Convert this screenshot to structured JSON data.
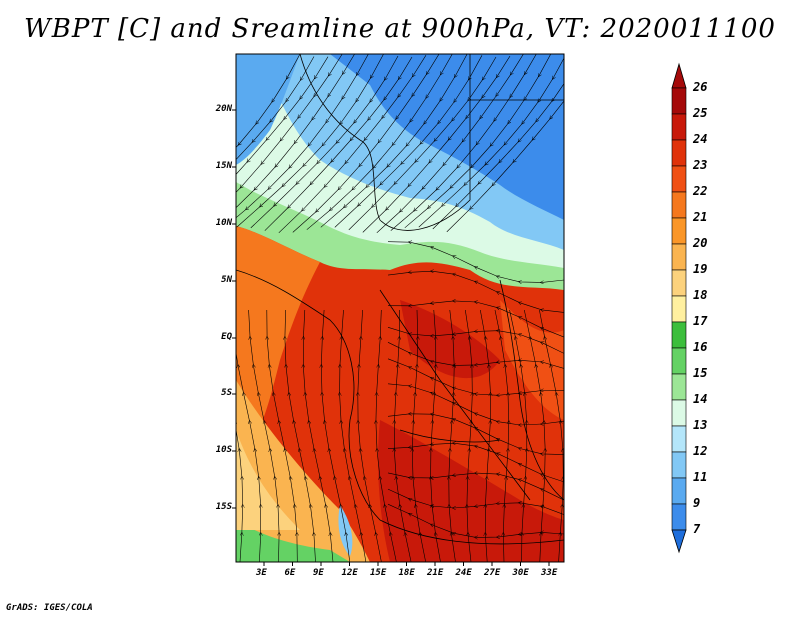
{
  "title": "WBPT [C] and Sreamline at 900hPa, VT: 2020011100",
  "footer": "GrADS: IGES/COLA",
  "map": {
    "lat_labels": [
      "20N",
      "15N",
      "10N",
      "5N",
      "EQ",
      "5S",
      "10S",
      "15S"
    ],
    "lon_labels": [
      "3E",
      "6E",
      "9E",
      "12E",
      "15E",
      "18E",
      "21E",
      "24E",
      "27E",
      "30E",
      "33E"
    ],
    "field": "WBPT",
    "level": "900hPa",
    "overlay": "streamlines"
  },
  "colorbar": {
    "labels": [
      "26",
      "25",
      "24",
      "23",
      "22",
      "21",
      "20",
      "19",
      "18",
      "17",
      "16",
      "15",
      "14",
      "13",
      "12",
      "11",
      "9",
      "7"
    ],
    "colors": [
      "#a50a0a",
      "#c8190a",
      "#e0320a",
      "#f05014",
      "#f5781e",
      "#fa9628",
      "#fab450",
      "#fcd27d",
      "#fff0a0",
      "#3cbe3c",
      "#64d264",
      "#9ce696",
      "#dcfae6",
      "#b4e6fa",
      "#82c8f5",
      "#5aaaf0",
      "#3c8ceb",
      "#1e6edc"
    ]
  }
}
